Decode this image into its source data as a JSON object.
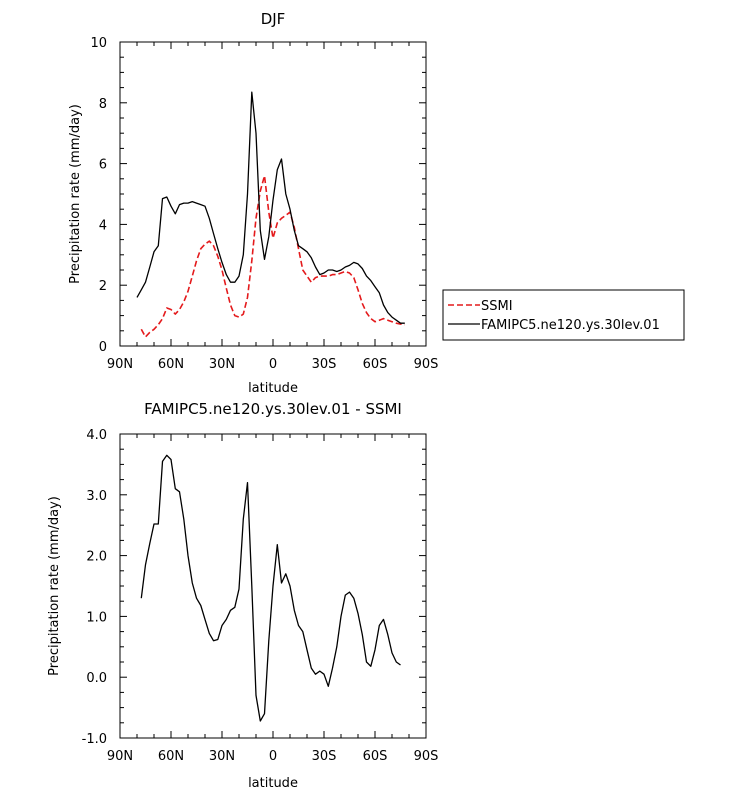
{
  "chart_data": [
    {
      "type": "line",
      "title": "DJF",
      "xlabel": "latitude",
      "ylabel": "Precipitation rate (mm/day)",
      "xlim": [
        90,
        -90
      ],
      "ylim": [
        0,
        10
      ],
      "xticks": [
        90,
        60,
        30,
        0,
        -30,
        -60,
        -90
      ],
      "xtick_labels": [
        "90N",
        "60N",
        "30N",
        "0",
        "30S",
        "60S",
        "90S"
      ],
      "yticks": [
        0,
        2,
        4,
        6,
        8,
        10
      ],
      "ytick_labels": [
        "0",
        "2",
        "4",
        "6",
        "8",
        "10"
      ],
      "legend_position": "right",
      "series": [
        {
          "name": "SSMI",
          "color": "#e41a1c",
          "dash": "dashed",
          "x": [
            77.5,
            75,
            72.5,
            70,
            67.5,
            65,
            62.5,
            60,
            57.5,
            55,
            52.5,
            50,
            47.5,
            45,
            42.5,
            40,
            37.5,
            35,
            32.5,
            30,
            27.5,
            25,
            22.5,
            20,
            17.5,
            15,
            12.5,
            10,
            7.5,
            5,
            2.5,
            0,
            -2.5,
            -5,
            -7.5,
            -10,
            -12.5,
            -15,
            -17.5,
            -20,
            -22.5,
            -25,
            -27.5,
            -30,
            -32.5,
            -35,
            -37.5,
            -40,
            -42.5,
            -45,
            -47.5,
            -50,
            -52.5,
            -55,
            -57.5,
            -60,
            -62.5,
            -65,
            -67.5,
            -70,
            -72.5,
            -75,
            -77.5
          ],
          "y": [
            0.55,
            0.3,
            0.45,
            0.55,
            0.7,
            0.9,
            1.25,
            1.2,
            1.05,
            1.2,
            1.45,
            1.8,
            2.3,
            2.8,
            3.2,
            3.35,
            3.45,
            3.3,
            2.95,
            2.5,
            1.9,
            1.35,
            1.0,
            0.95,
            1.05,
            1.6,
            2.8,
            4.2,
            5.1,
            5.6,
            4.4,
            3.55,
            4.05,
            4.2,
            4.3,
            4.4,
            3.9,
            3.2,
            2.5,
            2.3,
            2.1,
            2.25,
            2.3,
            2.3,
            2.3,
            2.35,
            2.35,
            2.4,
            2.45,
            2.4,
            2.25,
            1.85,
            1.4,
            1.1,
            0.9,
            0.8,
            0.85,
            0.9,
            0.85,
            0.8,
            0.75,
            0.72,
            0.7
          ]
        },
        {
          "name": "FAMIPC5.ne120.ys.30lev.01",
          "color": "#000000",
          "dash": "solid",
          "x": [
            80,
            77.5,
            75,
            72.5,
            70,
            67.5,
            65,
            62.5,
            60,
            57.5,
            55,
            52.5,
            50,
            47.5,
            45,
            42.5,
            40,
            37.5,
            35,
            32.5,
            30,
            27.5,
            25,
            22.5,
            20,
            17.5,
            15,
            12.5,
            10,
            7.5,
            5,
            2.5,
            0,
            -2.5,
            -5,
            -7.5,
            -10,
            -12.5,
            -15,
            -17.5,
            -20,
            -22.5,
            -25,
            -27.5,
            -30,
            -32.5,
            -35,
            -37.5,
            -40,
            -42.5,
            -45,
            -47.5,
            -50,
            -52.5,
            -55,
            -57.5,
            -60,
            -62.5,
            -65,
            -67.5,
            -70,
            -72.5,
            -75,
            -77.5
          ],
          "y": [
            1.6,
            1.85,
            2.1,
            2.6,
            3.1,
            3.3,
            4.85,
            4.9,
            4.6,
            4.35,
            4.65,
            4.7,
            4.7,
            4.75,
            4.7,
            4.65,
            4.6,
            4.2,
            3.7,
            3.2,
            2.75,
            2.35,
            2.1,
            2.1,
            2.3,
            3.0,
            5.0,
            8.35,
            7.0,
            3.8,
            2.85,
            3.6,
            4.8,
            5.8,
            6.15,
            5.0,
            4.5,
            3.8,
            3.3,
            3.2,
            3.1,
            2.9,
            2.6,
            2.35,
            2.4,
            2.5,
            2.5,
            2.45,
            2.5,
            2.6,
            2.65,
            2.75,
            2.7,
            2.55,
            2.3,
            2.15,
            1.95,
            1.75,
            1.35,
            1.1,
            0.95,
            0.85,
            0.75,
            0.75
          ]
        }
      ]
    },
    {
      "type": "line",
      "title": "FAMIPC5.ne120.ys.30lev.01 - SSMI",
      "xlabel": "latitude",
      "ylabel": "Precipitation rate (mm/day)",
      "xlim": [
        90,
        -90
      ],
      "ylim": [
        -1.0,
        4.0
      ],
      "xticks": [
        90,
        60,
        30,
        0,
        -30,
        -60,
        -90
      ],
      "xtick_labels": [
        "90N",
        "60N",
        "30N",
        "0",
        "30S",
        "60S",
        "90S"
      ],
      "yticks": [
        -1.0,
        0.0,
        1.0,
        2.0,
        3.0,
        4.0
      ],
      "ytick_labels": [
        "-1.0",
        "0.0",
        "1.0",
        "2.0",
        "3.0",
        "4.0"
      ],
      "series": [
        {
          "name": "FAMIPC5.ne120.ys.30lev.01 - SSMI",
          "color": "#000000",
          "dash": "solid",
          "x": [
            77.5,
            75,
            72.5,
            70,
            67.5,
            65,
            62.5,
            60,
            57.5,
            55,
            52.5,
            50,
            47.5,
            45,
            42.5,
            40,
            37.5,
            35,
            32.5,
            30,
            27.5,
            25,
            22.5,
            20,
            17.5,
            15,
            12.5,
            10,
            7.5,
            5,
            2.5,
            0,
            -2.5,
            -5,
            -7.5,
            -10,
            -12.5,
            -15,
            -17.5,
            -20,
            -22.5,
            -25,
            -27.5,
            -30,
            -32.5,
            -35,
            -37.5,
            -40,
            -42.5,
            -45,
            -47.5,
            -50,
            -52.5,
            -55,
            -57.5,
            -60,
            -62.5,
            -65,
            -67.5,
            -70,
            -72.5,
            -75
          ],
          "y": [
            1.3,
            1.85,
            2.2,
            2.52,
            2.52,
            3.55,
            3.65,
            3.58,
            3.1,
            3.05,
            2.6,
            2.0,
            1.55,
            1.3,
            1.18,
            0.95,
            0.72,
            0.6,
            0.62,
            0.85,
            0.95,
            1.1,
            1.15,
            1.45,
            2.6,
            3.2,
            1.5,
            -0.3,
            -0.72,
            -0.6,
            0.6,
            1.5,
            2.18,
            1.55,
            1.7,
            1.5,
            1.1,
            0.85,
            0.75,
            0.45,
            0.15,
            0.05,
            0.1,
            0.05,
            -0.15,
            0.15,
            0.5,
            1.0,
            1.35,
            1.4,
            1.3,
            1.05,
            0.7,
            0.25,
            0.18,
            0.45,
            0.85,
            0.95,
            0.7,
            0.4,
            0.25,
            0.2
          ]
        }
      ]
    }
  ]
}
